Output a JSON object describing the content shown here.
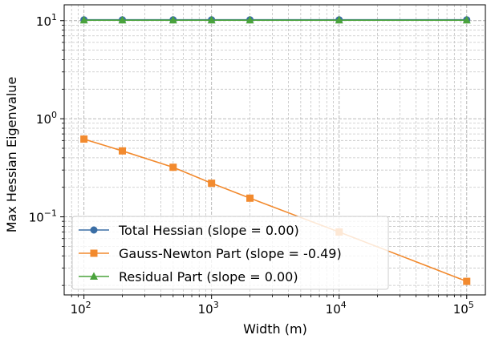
{
  "chart_data": {
    "type": "line",
    "xscale": "log",
    "yscale": "log",
    "x": [
      100,
      200,
      500,
      1000,
      2000,
      10000,
      100000
    ],
    "xlabel": "Width (m)",
    "ylabel": "Max Hessian Eigenvalue",
    "xlim": [
      70,
      140000
    ],
    "ylim": [
      0.016,
      14.5
    ],
    "xticks": [
      {
        "base": "10",
        "exp": "2",
        "value": 100
      },
      {
        "base": "10",
        "exp": "3",
        "value": 1000
      },
      {
        "base": "10",
        "exp": "4",
        "value": 10000
      },
      {
        "base": "10",
        "exp": "5",
        "value": 100000
      }
    ],
    "yticks": [
      {
        "base": "10",
        "exp": "1",
        "value": 10
      },
      {
        "base": "10",
        "exp": "0",
        "value": 1
      },
      {
        "base": "10",
        "exp": "−1",
        "value": 0.1
      }
    ],
    "grid": true,
    "grid_minor": true,
    "legend_position": "lower-left",
    "series": [
      {
        "name": "Total Hessian (slope = 0.00)",
        "color": "#3a6ea5",
        "marker": "circle",
        "values": [
          10.2,
          10.2,
          10.2,
          10.2,
          10.2,
          10.2,
          10.2
        ]
      },
      {
        "name": "Gauss-Newton Part (slope = -0.49)",
        "color": "#f28a2e",
        "marker": "square",
        "values": [
          0.62,
          0.47,
          0.32,
          0.22,
          0.155,
          0.07,
          0.022
        ]
      },
      {
        "name": "Residual Part (slope = 0.00)",
        "color": "#4aa33c",
        "marker": "triangle",
        "values": [
          10.1,
          10.1,
          10.1,
          10.1,
          10.1,
          10.1,
          10.1
        ]
      }
    ]
  }
}
